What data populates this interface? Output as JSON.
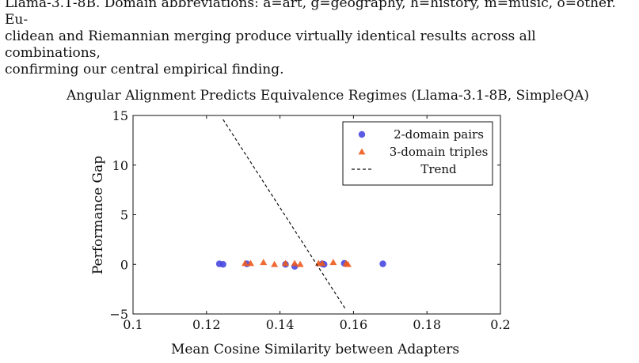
{
  "caption": {
    "lines": [
      "Llama-3.1-8B. Domain abbreviations: a=art, g=geography, h=history, m=music, o=other. Eu-",
      "clidean and Riemannian merging produce virtually identical results across all combinations,",
      "confirming our central empirical finding."
    ]
  },
  "chart_data": {
    "type": "scatter",
    "title": "Angular Alignment Predicts Equivalence Regimes (Llama-3.1-8B, SimpleQA)",
    "xlabel": "Mean Cosine Similarity between Adapters",
    "ylabel": "Performance Gap",
    "xlim": [
      0.1,
      0.2
    ],
    "ylim": [
      -5,
      15
    ],
    "xticks": [
      0.1,
      0.12,
      0.14,
      0.16,
      0.18,
      0.2
    ],
    "xtick_labels": [
      "0.1",
      "0.12",
      "0.14",
      "0.16",
      "0.18",
      "0.2"
    ],
    "yticks": [
      -5,
      0,
      5,
      10,
      15
    ],
    "ytick_labels": [
      "−5",
      "0",
      "5",
      "10",
      "15"
    ],
    "grid": false,
    "legend_position": "top-right",
    "series": [
      {
        "name": "2-domain pairs",
        "marker": "circle",
        "color": "#4848e0",
        "points": [
          {
            "x": 0.1235,
            "y": 0.05
          },
          {
            "x": 0.1245,
            "y": 0.0
          },
          {
            "x": 0.131,
            "y": 0.05
          },
          {
            "x": 0.1415,
            "y": 0.0
          },
          {
            "x": 0.144,
            "y": -0.2
          },
          {
            "x": 0.1515,
            "y": 0.05
          },
          {
            "x": 0.152,
            "y": 0.0
          },
          {
            "x": 0.1575,
            "y": 0.1
          },
          {
            "x": 0.168,
            "y": 0.05
          }
        ]
      },
      {
        "name": "3-domain triples",
        "marker": "triangle",
        "color": "#ee5a1e",
        "points": [
          {
            "x": 0.1305,
            "y": 0.1
          },
          {
            "x": 0.132,
            "y": 0.1
          },
          {
            "x": 0.1355,
            "y": 0.2
          },
          {
            "x": 0.1385,
            "y": 0.0
          },
          {
            "x": 0.1415,
            "y": 0.1
          },
          {
            "x": 0.144,
            "y": 0.1
          },
          {
            "x": 0.1455,
            "y": 0.0
          },
          {
            "x": 0.1505,
            "y": 0.1
          },
          {
            "x": 0.1515,
            "y": 0.1
          },
          {
            "x": 0.1545,
            "y": 0.2
          },
          {
            "x": 0.158,
            "y": 0.1
          },
          {
            "x": 0.1585,
            "y": 0.0
          }
        ]
      },
      {
        "name": "Trend",
        "type": "line",
        "style": "dashed",
        "color": "#111111",
        "points": [
          {
            "x": 0.1245,
            "y": 14.6
          },
          {
            "x": 0.158,
            "y": -4.6
          }
        ]
      }
    ]
  }
}
